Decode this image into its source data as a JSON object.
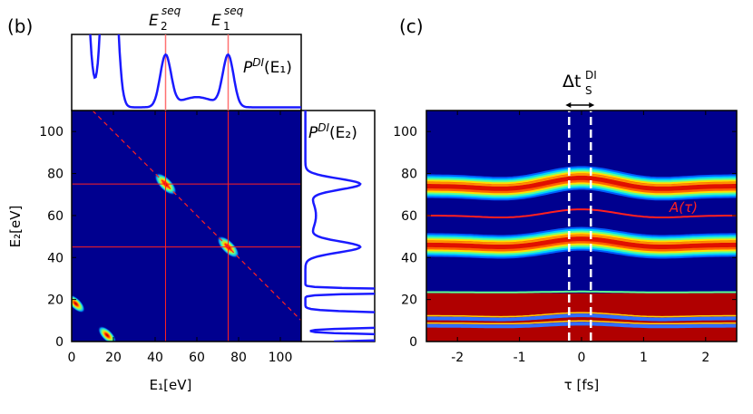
{
  "chart_data": [
    {
      "panel_label": "(b)",
      "type": "heatmap",
      "xlabel": "E₁[eV]",
      "ylabel": "E₂[eV]",
      "xlim": [
        0,
        110
      ],
      "ylim": [
        0,
        110
      ],
      "xticks": [
        "0",
        "20",
        "40",
        "60",
        "80",
        "100"
      ],
      "yticks": [
        "0",
        "20",
        "40",
        "60",
        "80",
        "100"
      ],
      "colormap": "jet",
      "background": "#00008f",
      "spots": [
        {
          "x": 45,
          "y": 75,
          "peak": 1.0
        },
        {
          "x": 75,
          "y": 45,
          "peak": 1.0
        },
        {
          "x": 2,
          "y": 18,
          "peak": 1.0
        },
        {
          "x": 17,
          "y": 3,
          "peak": 1.0
        }
      ],
      "dashed_line": {
        "label": "",
        "x_plus_y": 120,
        "color": "#ff2020"
      },
      "reference_lines": {
        "E1": [
          45,
          75
        ],
        "E2": [
          45,
          75
        ],
        "color": "#ff2020"
      },
      "top_annotations": [
        {
          "base": "E",
          "sub": "2",
          "sup": "seq",
          "x": 45
        },
        {
          "base": "E",
          "sub": "1",
          "sup": "seq",
          "x": 75
        }
      ],
      "marginal_top_label": {
        "base": "P",
        "sup": "DI",
        "arg": "(E₁)"
      },
      "marginal_right_label": {
        "base": "P",
        "sup": "DI",
        "arg": "(E₂)"
      },
      "marginal_color": "#1a1aff"
    },
    {
      "panel_label": "(c)",
      "type": "heatmap",
      "xlabel": "τ [fs]",
      "ylabel": "",
      "xlim": [
        -2.5,
        2.5
      ],
      "ylim": [
        0,
        110
      ],
      "xticks": [
        "-2",
        "-1",
        "0",
        "1",
        "2"
      ],
      "yticks": [
        "0",
        "20",
        "40",
        "60",
        "80",
        "100"
      ],
      "colormap": "jet",
      "bands": [
        {
          "center_baseline": 74,
          "center_at_zero": 78
        },
        {
          "center_baseline": 46,
          "center_at_zero": 49
        }
      ],
      "saturated_region": [
        0,
        23
      ],
      "curve_label": "A(τ)",
      "curve": {
        "baseline": 60,
        "min": 58,
        "max": 63,
        "color": "#ff2020"
      },
      "interval_label": {
        "base": "Δt",
        "sub": "S",
        "sup": "DI"
      },
      "interval": [
        -0.2,
        0.15
      ]
    }
  ]
}
